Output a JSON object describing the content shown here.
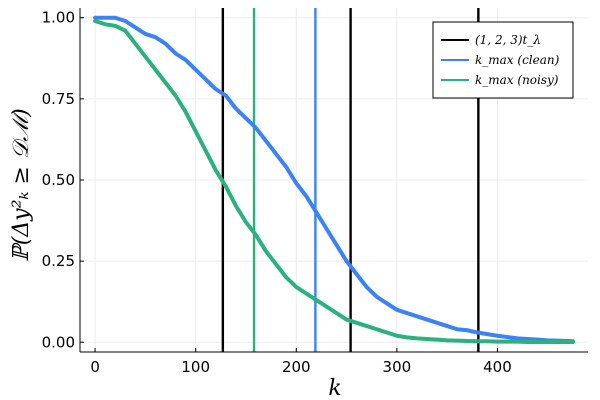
{
  "chart_data": {
    "type": "line",
    "title": "",
    "xlabel": "k",
    "ylabel": "ℙ(Δy²ₖ ≥ 𝒟ℳ)",
    "xlim": [
      -15,
      490
    ],
    "ylim": [
      -0.03,
      1.03
    ],
    "x_ticks": [
      0,
      100,
      200,
      300,
      400
    ],
    "x_tick_labels": [
      "0",
      "100",
      "200",
      "300",
      "400"
    ],
    "y_ticks": [
      0.0,
      0.25,
      0.5,
      0.75,
      1.0
    ],
    "y_tick_labels": [
      "0.00",
      "0.25",
      "0.50",
      "0.75",
      "1.00"
    ],
    "grid": true,
    "legend_position": "top-right",
    "series": [
      {
        "name": "k_max (clean)",
        "color": "#3b82f6",
        "x": [
          0,
          10,
          20,
          30,
          40,
          50,
          60,
          70,
          80,
          90,
          100,
          110,
          120,
          130,
          140,
          150,
          160,
          170,
          180,
          190,
          200,
          210,
          220,
          230,
          240,
          250,
          260,
          270,
          280,
          290,
          300,
          310,
          320,
          330,
          340,
          350,
          360,
          370,
          380,
          390,
          400,
          410,
          420,
          430,
          440,
          450,
          460,
          470,
          475
        ],
        "y": [
          1.0,
          1.0,
          1.0,
          0.99,
          0.97,
          0.95,
          0.94,
          0.92,
          0.89,
          0.87,
          0.84,
          0.81,
          0.78,
          0.76,
          0.72,
          0.69,
          0.66,
          0.62,
          0.58,
          0.54,
          0.49,
          0.45,
          0.4,
          0.35,
          0.3,
          0.25,
          0.21,
          0.17,
          0.14,
          0.12,
          0.1,
          0.09,
          0.08,
          0.07,
          0.06,
          0.05,
          0.04,
          0.037,
          0.03,
          0.025,
          0.02,
          0.016,
          0.012,
          0.01,
          0.008,
          0.006,
          0.005,
          0.004,
          0.003
        ]
      },
      {
        "name": "k_max (noisy)",
        "color": "#2bb07f",
        "x": [
          0,
          10,
          20,
          30,
          40,
          50,
          60,
          70,
          80,
          90,
          100,
          110,
          120,
          130,
          140,
          150,
          160,
          170,
          180,
          190,
          200,
          210,
          220,
          230,
          240,
          250,
          260,
          270,
          280,
          290,
          300,
          310,
          320,
          330,
          340,
          350,
          360,
          370,
          380,
          390,
          400,
          410,
          420,
          430,
          440,
          450,
          460,
          470,
          475
        ],
        "y": [
          0.99,
          0.98,
          0.975,
          0.96,
          0.92,
          0.88,
          0.84,
          0.8,
          0.76,
          0.71,
          0.65,
          0.59,
          0.53,
          0.48,
          0.42,
          0.37,
          0.33,
          0.28,
          0.24,
          0.2,
          0.17,
          0.15,
          0.13,
          0.11,
          0.09,
          0.07,
          0.06,
          0.05,
          0.04,
          0.03,
          0.02,
          0.015,
          0.012,
          0.01,
          0.008,
          0.006,
          0.005,
          0.004,
          0.003,
          0.003,
          0.002,
          0.002,
          0.002,
          0.001,
          0.001,
          0.001,
          0.001,
          0.001,
          0.001
        ]
      }
    ],
    "vlines": [
      {
        "name": "(1, 2, 3) t_λ",
        "color": "#000000",
        "x": [
          127,
          254,
          381
        ]
      },
      {
        "name": "k_max (clean)",
        "color": "#3b82f6",
        "x": [
          219
        ]
      },
      {
        "name": "k_max (noisy)",
        "color": "#2bb07f",
        "x": [
          158
        ]
      }
    ],
    "legend": [
      {
        "label": "(1, 2, 3)t_λ",
        "color": "#000000"
      },
      {
        "label": "k_max (clean)",
        "color": "#3b82f6"
      },
      {
        "label": "k_max (noisy)",
        "color": "#2bb07f"
      }
    ]
  }
}
